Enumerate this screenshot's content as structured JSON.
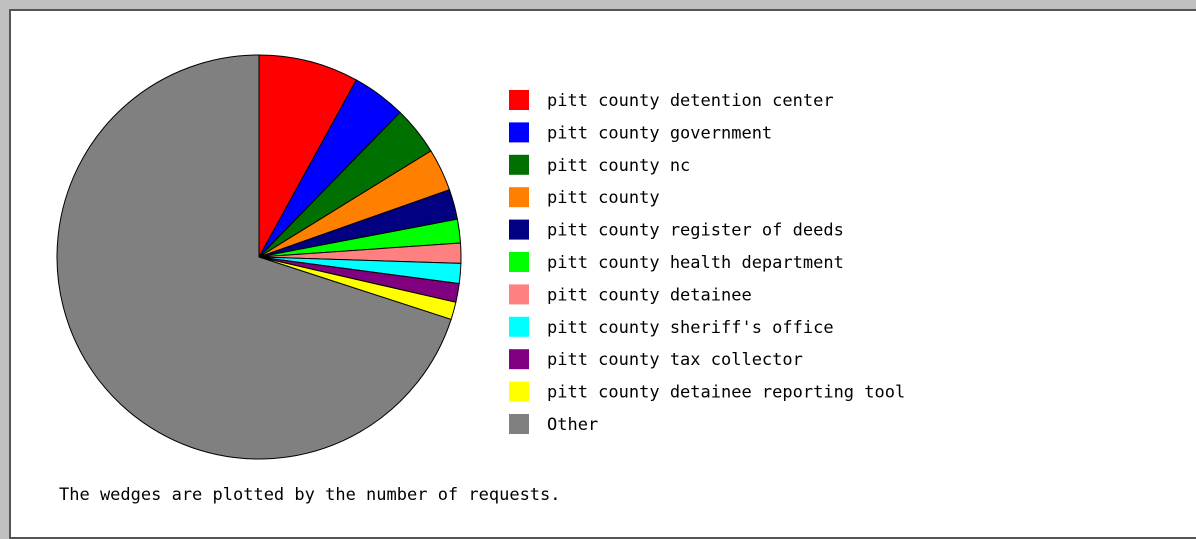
{
  "chart_data": {
    "type": "pie",
    "categories": [
      "pitt county detention center",
      "pitt county government",
      "pitt county nc",
      "pitt county",
      "pitt county register of deeds",
      "pitt county health department",
      "pitt county detainee",
      "pitt county sheriff's office",
      "pitt county tax collector",
      "pitt county detainee reporting tool",
      "Other"
    ],
    "values": [
      8.0,
      4.3,
      3.9,
      3.4,
      2.4,
      1.9,
      1.6,
      1.6,
      1.5,
      1.4,
      70.0
    ],
    "colors": [
      "#ff0000",
      "#0000ff",
      "#007000",
      "#ff8000",
      "#000080",
      "#00ff00",
      "#ff8080",
      "#00ffff",
      "#800080",
      "#ffff00",
      "#808080"
    ],
    "footnote": "The wedges are plotted by the number of requests."
  }
}
